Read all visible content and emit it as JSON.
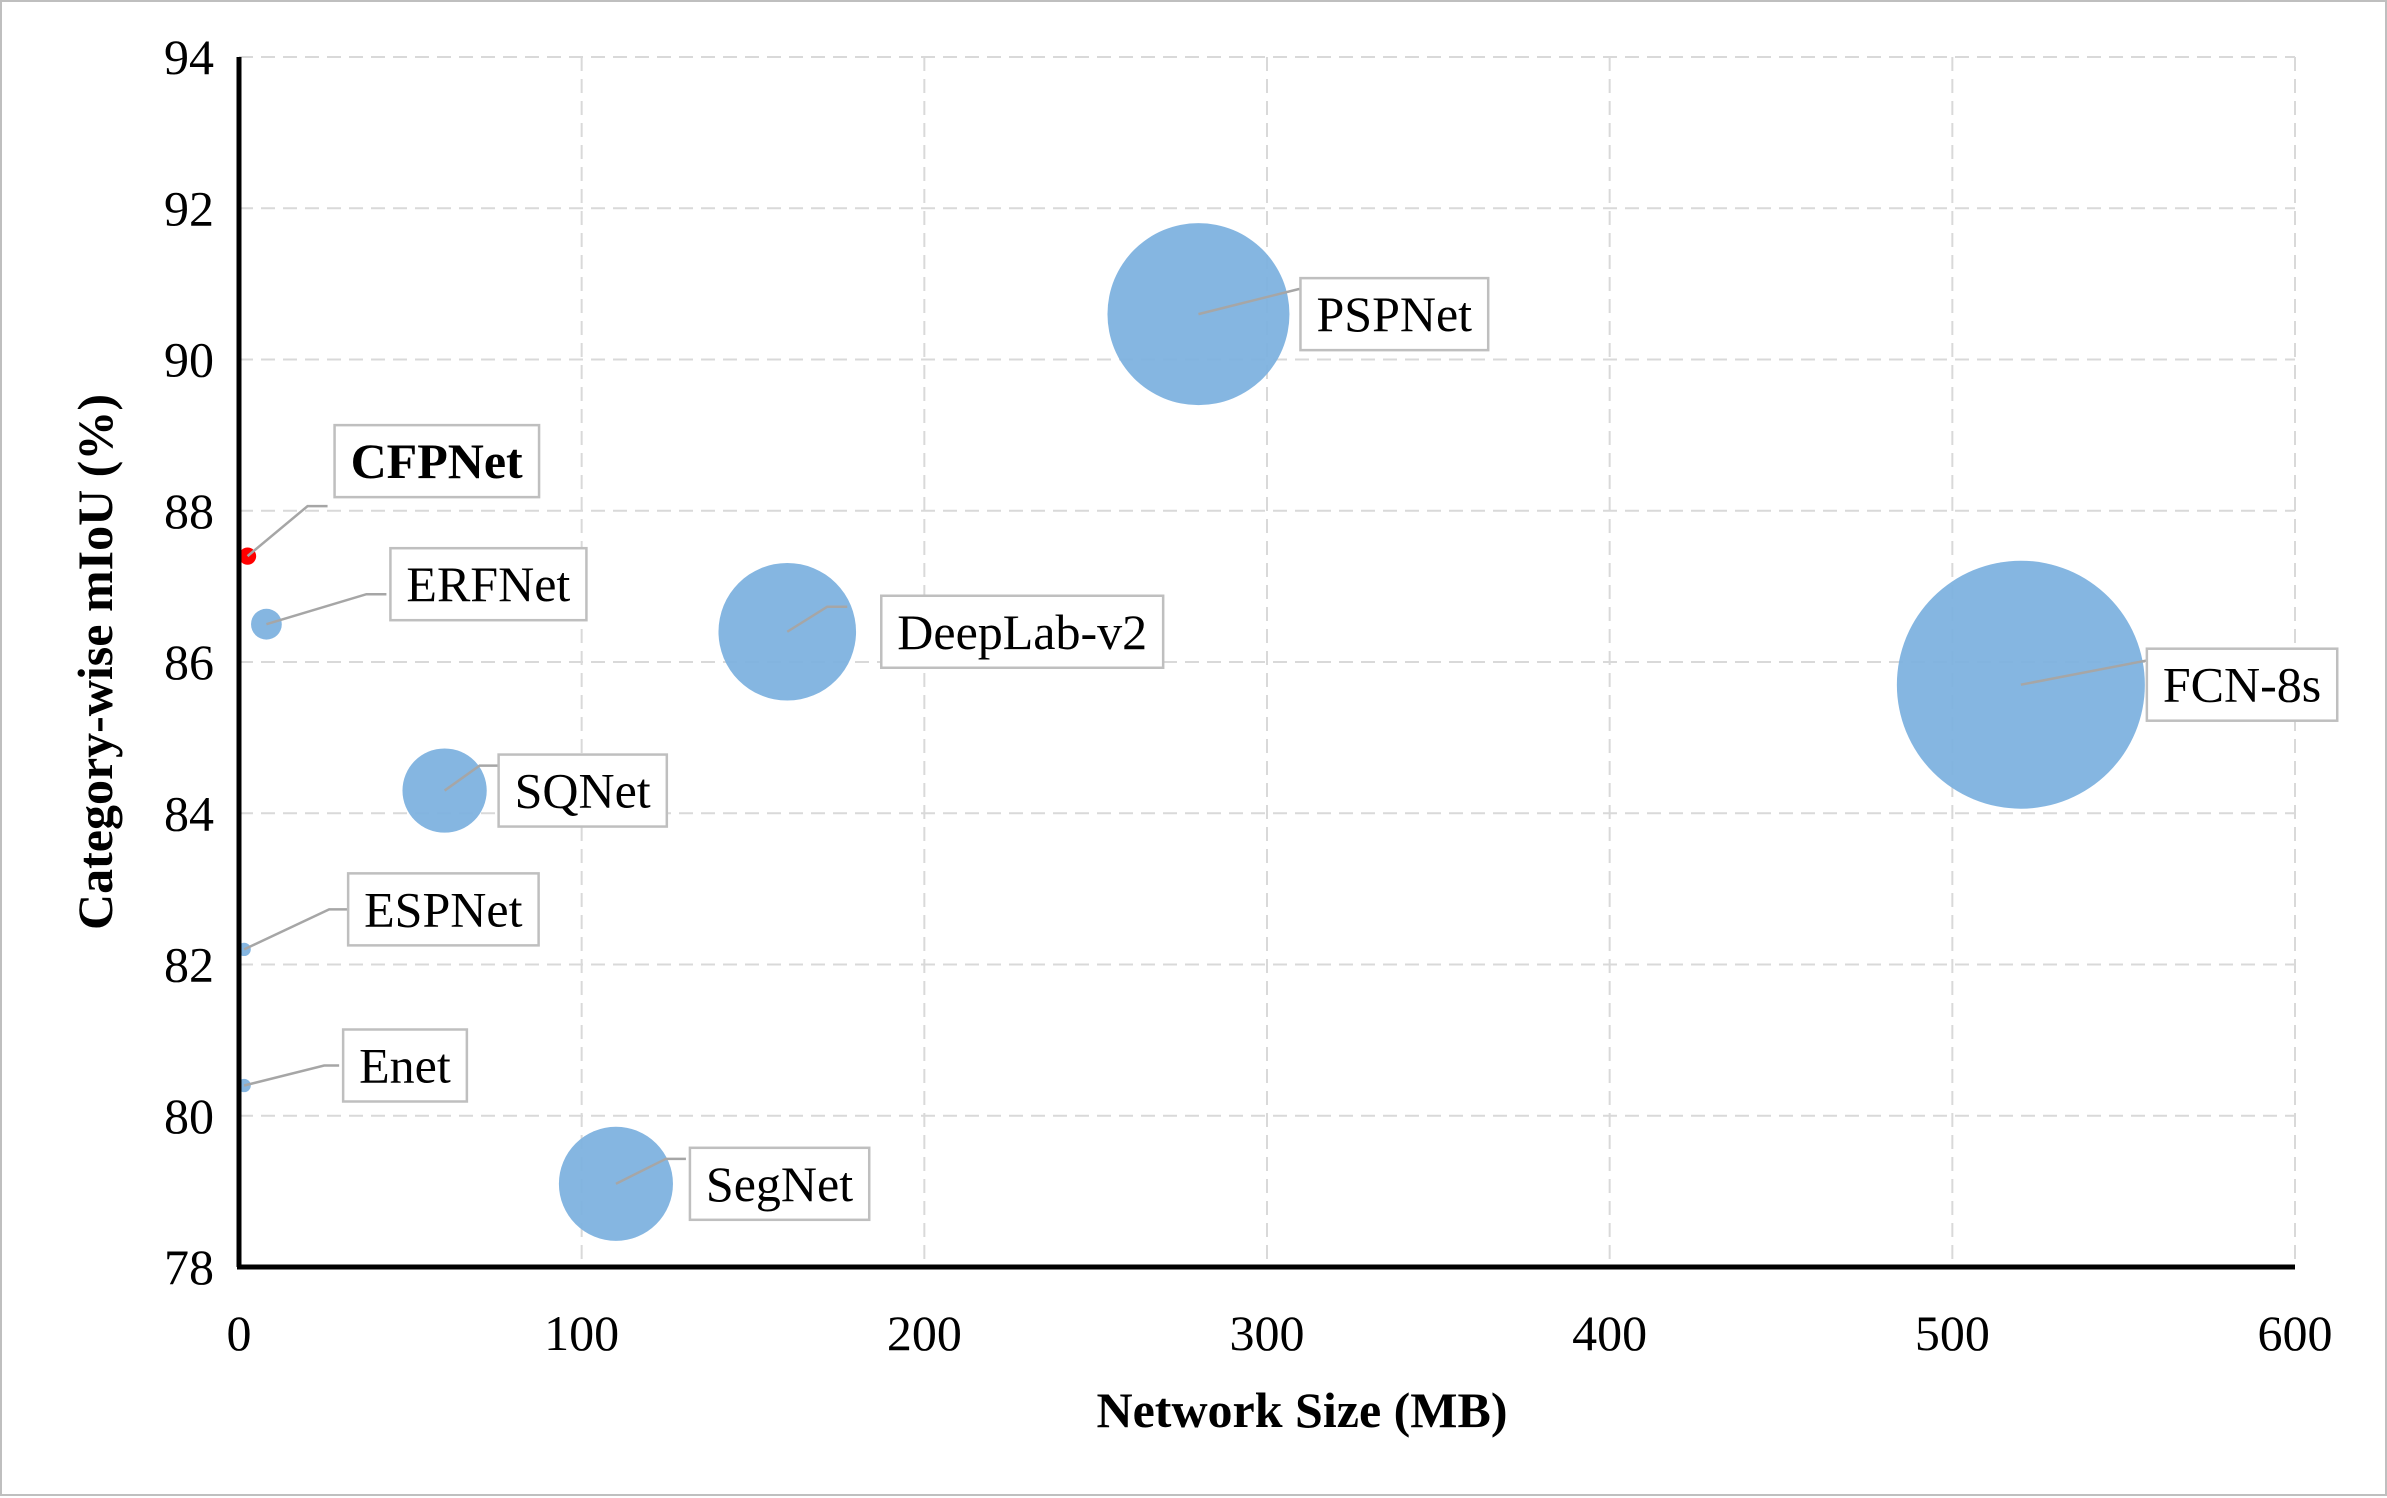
{
  "chart_data": {
    "type": "scatter",
    "title": "",
    "xlabel": "Network Size (MB)",
    "ylabel": "Category-wise mIoU (%)",
    "xlim": [
      0,
      600
    ],
    "ylim": [
      78,
      94
    ],
    "xticks": [
      "0",
      "100",
      "200",
      "300",
      "400",
      "500",
      "600"
    ],
    "yticks": [
      "78",
      "80",
      "82",
      "84",
      "86",
      "88",
      "90",
      "92",
      "94"
    ],
    "grid": true,
    "legend": "none",
    "colors": {
      "bubble": "#7eb2df",
      "highlight": "#ff0000",
      "grid": "#d9d9d9",
      "leader": "#a6a6a6"
    },
    "points": [
      {
        "name": "CFPNet",
        "x": 2.5,
        "y": 87.4,
        "size": 2.5,
        "bold": true,
        "color": "#ff0000"
      },
      {
        "name": "ERFNet",
        "x": 8,
        "y": 86.5,
        "size": 8,
        "bold": false
      },
      {
        "name": "DeepLab-v2",
        "x": 160,
        "y": 86.4,
        "size": 160,
        "bold": false
      },
      {
        "name": "PSPNet",
        "x": 280,
        "y": 90.6,
        "size": 280,
        "bold": false
      },
      {
        "name": "FCN-8s",
        "x": 520,
        "y": 85.7,
        "size": 520,
        "bold": false
      },
      {
        "name": "SQNet",
        "x": 60,
        "y": 84.3,
        "size": 60,
        "bold": false
      },
      {
        "name": "ESPNet",
        "x": 1.5,
        "y": 82.2,
        "size": 1.5,
        "bold": false
      },
      {
        "name": "Enet",
        "x": 1.5,
        "y": 80.4,
        "size": 1.5,
        "bold": false
      },
      {
        "name": "SegNet",
        "x": 110,
        "y": 79.1,
        "size": 110,
        "bold": false
      }
    ]
  }
}
